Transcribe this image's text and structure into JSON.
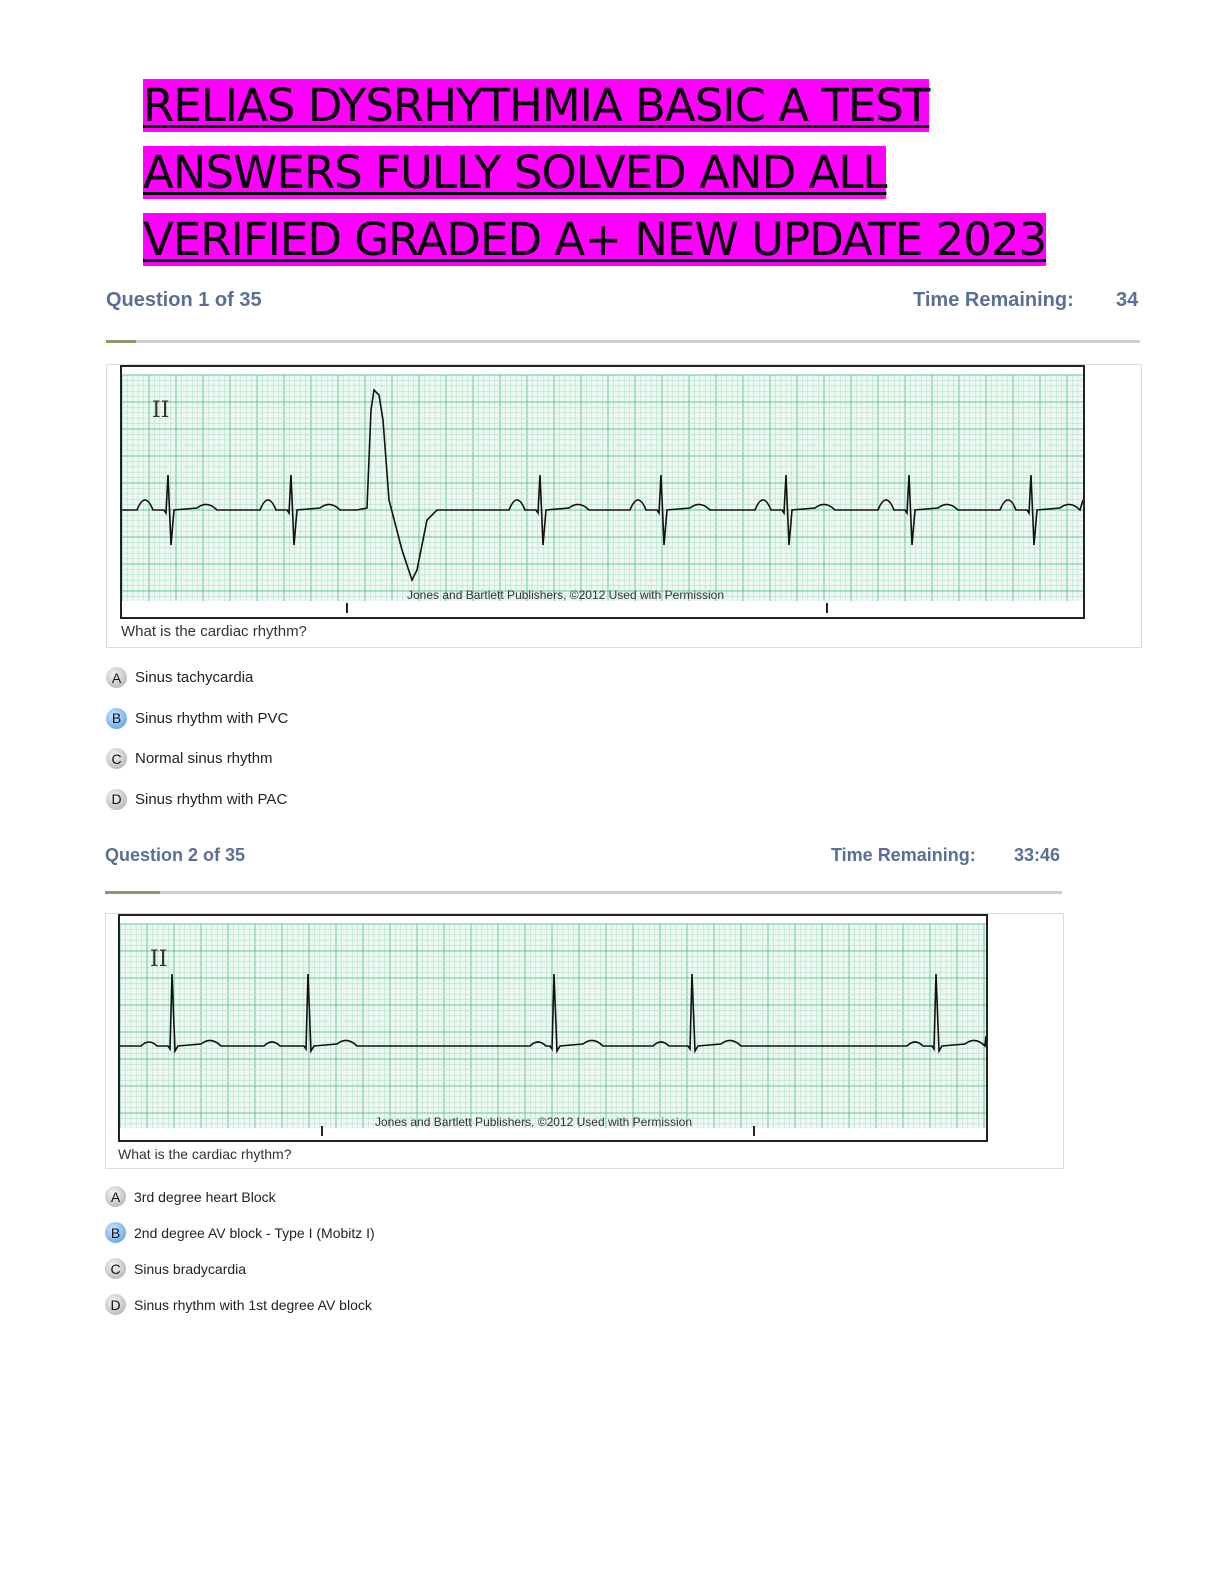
{
  "title_lines": [
    "RELIAS DYSRHYTHMIA BASIC A TEST",
    "ANSWERS FULLY SOLVED AND ALL",
    "VERIFIED GRADED A+ NEW UPDATE 2023"
  ],
  "highlight_color": "#ff00ff",
  "questions": [
    {
      "header": "Question 1 of 35",
      "time_label": "Time Remaining:",
      "time_value": "34",
      "lead": "II",
      "credit": "Jones and Bartlett Publishers, ©2012 Used with Permission",
      "prompt": "What is the cardiac rhythm?",
      "options": [
        {
          "letter": "A",
          "text": "Sinus tachycardia"
        },
        {
          "letter": "B",
          "text": "Sinus rhythm with PVC",
          "selected": true
        },
        {
          "letter": "C",
          "text": "Normal sinus rhythm"
        },
        {
          "letter": "D",
          "text": "Sinus rhythm with PAC"
        }
      ]
    },
    {
      "header": "Question 2 of 35",
      "time_label": "Time Remaining:",
      "time_value": "33:46",
      "lead": "II",
      "credit": "Jones and Bartlett Publishers, ©2012 Used with Permission",
      "prompt": "What is the cardiac rhythm?",
      "options": [
        {
          "letter": "A",
          "text": "3rd degree heart Block"
        },
        {
          "letter": "B",
          "text": "2nd degree AV block - Type I (Mobitz I)",
          "selected": true
        },
        {
          "letter": "C",
          "text": "Sinus bradycardia"
        },
        {
          "letter": "D",
          "text": "Sinus rhythm with 1st degree AV block"
        }
      ]
    }
  ]
}
